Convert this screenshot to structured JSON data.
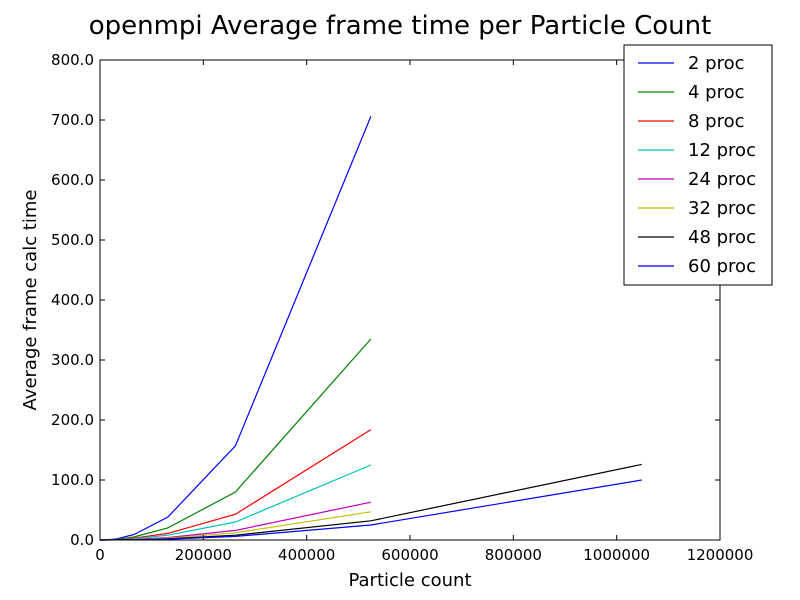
{
  "chart_data": {
    "type": "line",
    "title": "openmpi Average frame time per Particle Count",
    "xlabel": "Particle count",
    "ylabel": "Average frame calc time",
    "xlim": [
      0,
      1200000
    ],
    "ylim": [
      0,
      800
    ],
    "xticks": [
      0,
      200000,
      400000,
      600000,
      800000,
      1000000,
      1200000
    ],
    "yticks": [
      0,
      100,
      200,
      300,
      400,
      500,
      600,
      700,
      800
    ],
    "xtick_labels": [
      "0",
      "200000",
      "400000",
      "600000",
      "800000",
      "1000000",
      "1200000"
    ],
    "ytick_labels": [
      "0.0",
      "100.0",
      "200.0",
      "300.0",
      "400.0",
      "500.0",
      "600.0",
      "700.0",
      "800.0"
    ],
    "grid": false,
    "legend_position": "top-right",
    "series": [
      {
        "name": "2 proc",
        "color": "#0000ff",
        "x": [
          0,
          16384,
          32768,
          65536,
          131072,
          262144,
          524288
        ],
        "y": [
          0,
          0.5,
          2,
          9,
          38,
          157,
          706
        ]
      },
      {
        "name": "4 proc",
        "color": "#008000",
        "x": [
          0,
          16384,
          32768,
          65536,
          131072,
          262144,
          524288
        ],
        "y": [
          0,
          0.3,
          1,
          5,
          20,
          80,
          335
        ]
      },
      {
        "name": "8 proc",
        "color": "#ff0000",
        "x": [
          0,
          16384,
          32768,
          65536,
          131072,
          262144,
          524288
        ],
        "y": [
          0,
          0.2,
          0.6,
          3,
          11,
          43,
          184
        ]
      },
      {
        "name": "12 proc",
        "color": "#00bfbf",
        "x": [
          0,
          16384,
          32768,
          65536,
          131072,
          262144,
          524288
        ],
        "y": [
          0,
          0.1,
          0.4,
          2,
          8,
          30,
          125
        ]
      },
      {
        "name": "24 proc",
        "color": "#bf00bf",
        "x": [
          0,
          16384,
          32768,
          65536,
          131072,
          262144,
          524288
        ],
        "y": [
          0,
          0.1,
          0.3,
          1,
          4,
          16,
          63
        ]
      },
      {
        "name": "32 proc",
        "color": "#bfbf00",
        "x": [
          0,
          16384,
          32768,
          65536,
          131072,
          262144,
          524288
        ],
        "y": [
          0,
          0.1,
          0.2,
          1,
          3,
          12,
          47
        ]
      },
      {
        "name": "48 proc",
        "color": "#000000",
        "x": [
          0,
          65536,
          131072,
          262144,
          524288,
          1048576
        ],
        "y": [
          0,
          0.5,
          2,
          8,
          32,
          126
        ]
      },
      {
        "name": "60 proc",
        "color": "#0000ff",
        "x": [
          0,
          65536,
          131072,
          262144,
          524288,
          1048576
        ],
        "y": [
          0,
          0.4,
          1.5,
          6,
          25,
          100
        ]
      }
    ]
  }
}
